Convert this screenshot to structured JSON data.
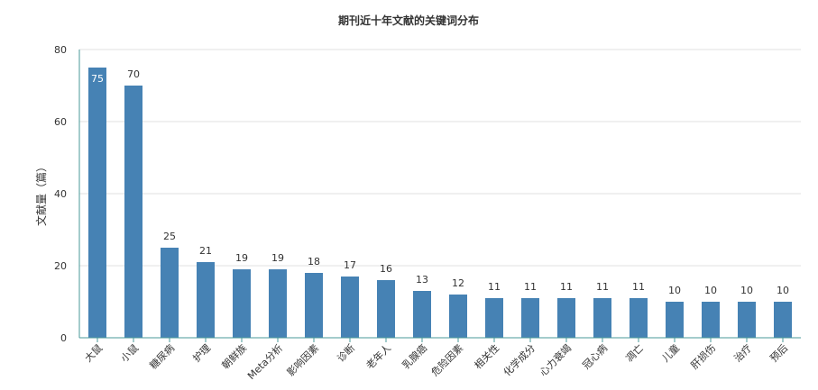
{
  "chart_data": {
    "type": "bar",
    "title": "期刊近十年文献的关键词分布",
    "xlabel": "",
    "ylabel": "文献量（篇）",
    "ylim": [
      0,
      80
    ],
    "yticks": [
      0,
      20,
      40,
      60,
      80
    ],
    "grid": true,
    "legend": "none",
    "bar_color": "#4682B4",
    "categories": [
      "大鼠",
      "小鼠",
      "糖尿病",
      "护理",
      "朝鲜族",
      "Meta分析",
      "影响因素",
      "诊断",
      "老年人",
      "乳腺癌",
      "危险因素",
      "相关性",
      "化学成分",
      "心力衰竭",
      "冠心病",
      "凋亡",
      "儿童",
      "肝损伤",
      "治疗",
      "预后"
    ],
    "values": [
      75,
      70,
      25,
      21,
      19,
      19,
      18,
      17,
      16,
      13,
      12,
      11,
      11,
      11,
      11,
      11,
      10,
      10,
      10,
      10
    ]
  }
}
